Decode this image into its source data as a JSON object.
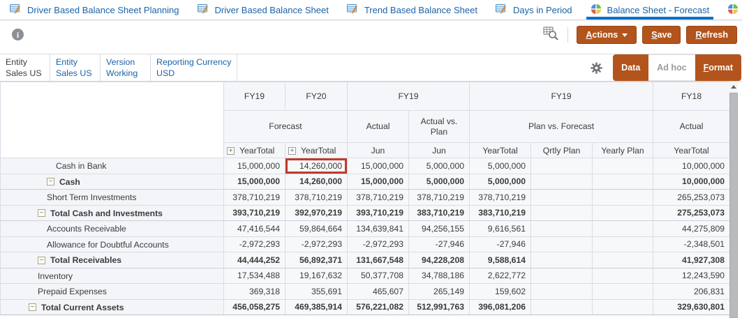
{
  "tabs": {
    "items": [
      {
        "label": "Driver Based Balance Sheet Planning",
        "icon": "form-icon",
        "active": false
      },
      {
        "label": "Driver Based Balance Sheet",
        "icon": "form-icon",
        "active": false
      },
      {
        "label": "Trend Based Balance Sheet",
        "icon": "form-icon",
        "active": false
      },
      {
        "label": "Days in Period",
        "icon": "form-icon",
        "active": false
      },
      {
        "label": "Balance Sheet - Forecast",
        "icon": "dashboard-pie-icon",
        "active": true
      },
      {
        "label": "Balance Sheet - Plan",
        "icon": "dashboard-pie-icon",
        "active": false
      }
    ]
  },
  "toolbar": {
    "icons": [
      "info-icon",
      "member-search-icon"
    ],
    "buttons": [
      {
        "label": "Actions",
        "underline_first": true,
        "has_dropdown": true
      },
      {
        "label": "Save",
        "underline_first": true,
        "has_dropdown": false
      },
      {
        "label": "Refresh",
        "underline_first": true,
        "has_dropdown": false
      }
    ]
  },
  "pov": {
    "items": [
      {
        "dimension": "Entity",
        "member": "Sales US",
        "link": false
      },
      {
        "dimension": "Entity",
        "member": "Sales US",
        "link": true
      },
      {
        "dimension": "Version",
        "member": "Working",
        "link": true
      },
      {
        "dimension": "Reporting Currency",
        "member": "USD",
        "link": true
      }
    ],
    "gear_icon": "gear-icon",
    "modes": [
      {
        "label": "Data",
        "style": "brown",
        "underline_first": false
      },
      {
        "label": "Ad hoc",
        "style": "plain",
        "underline_first": false
      },
      {
        "label": "Format",
        "style": "brown",
        "underline_first": true
      }
    ]
  },
  "grid": {
    "header": {
      "years": [
        {
          "label": "FY19",
          "span": 1
        },
        {
          "label": "FY20",
          "span": 1
        },
        {
          "label": "FY19",
          "span": 2
        },
        {
          "label": "FY19",
          "span": 3
        },
        {
          "label": "FY18",
          "span": 1
        }
      ],
      "scenarios": [
        {
          "label": "Forecast",
          "span": 2
        },
        {
          "label": "Actual",
          "span": 1
        },
        {
          "label": "Actual vs. Plan",
          "span": 1
        },
        {
          "label": "Plan vs. Forecast",
          "span": 3
        },
        {
          "label": "Actual",
          "span": 1
        }
      ],
      "periods": [
        {
          "label": "YearTotal",
          "expand": true
        },
        {
          "label": "YearTotal",
          "expand": true
        },
        {
          "label": "Jun",
          "expand": false
        },
        {
          "label": "Jun",
          "expand": false
        },
        {
          "label": "YearTotal",
          "expand": false
        },
        {
          "label": "Qrtly Plan",
          "expand": false
        },
        {
          "label": "Yearly Plan",
          "expand": false
        },
        {
          "label": "YearTotal",
          "expand": false
        }
      ]
    },
    "rows": [
      {
        "label": "Cash in Bank",
        "level": 3,
        "bold": false,
        "collapse": false,
        "values": [
          "15,000,000",
          "14,260,000",
          "15,000,000",
          "5,000,000",
          "5,000,000",
          "",
          "",
          "10,000,000"
        ],
        "highlight_col": 1
      },
      {
        "label": "Cash",
        "level": 2,
        "bold": true,
        "collapse": true,
        "values": [
          "15,000,000",
          "14,260,000",
          "15,000,000",
          "5,000,000",
          "5,000,000",
          "",
          "",
          "10,000,000"
        ],
        "highlight_col": -1
      },
      {
        "label": "Short Term Investments",
        "level": 2,
        "bold": false,
        "collapse": false,
        "values": [
          "378,710,219",
          "378,710,219",
          "378,710,219",
          "378,710,219",
          "378,710,219",
          "",
          "",
          "265,253,073"
        ],
        "highlight_col": -1
      },
      {
        "label": "Total Cash and Investments",
        "level": 1,
        "bold": true,
        "collapse": true,
        "values": [
          "393,710,219",
          "392,970,219",
          "393,710,219",
          "383,710,219",
          "383,710,219",
          "",
          "",
          "275,253,073"
        ],
        "highlight_col": -1
      },
      {
        "label": "Accounts Receivable",
        "level": 2,
        "bold": false,
        "collapse": false,
        "values": [
          "47,416,544",
          "59,864,664",
          "134,639,841",
          "94,256,155",
          "9,616,561",
          "",
          "",
          "44,275,809"
        ],
        "highlight_col": -1
      },
      {
        "label": "Allowance for Doubtful Accounts",
        "level": 2,
        "bold": false,
        "collapse": false,
        "values": [
          "-2,972,293",
          "-2,972,293",
          "-2,972,293",
          "-27,946",
          "-27,946",
          "",
          "",
          "-2,348,501"
        ],
        "highlight_col": -1
      },
      {
        "label": "Total Receivables",
        "level": 1,
        "bold": true,
        "collapse": true,
        "values": [
          "44,444,252",
          "56,892,371",
          "131,667,548",
          "94,228,208",
          "9,588,614",
          "",
          "",
          "41,927,308"
        ],
        "highlight_col": -1
      },
      {
        "label": "Inventory",
        "level": 1,
        "bold": false,
        "collapse": false,
        "values": [
          "17,534,488",
          "19,167,632",
          "50,377,708",
          "34,788,186",
          "2,622,772",
          "",
          "",
          "12,243,590"
        ],
        "highlight_col": -1
      },
      {
        "label": "Prepaid Expenses",
        "level": 1,
        "bold": false,
        "collapse": false,
        "values": [
          "369,318",
          "355,691",
          "465,607",
          "265,149",
          "159,602",
          "",
          "",
          "206,831"
        ],
        "highlight_col": -1
      },
      {
        "label": "Total Current Assets",
        "level": 0,
        "bold": true,
        "collapse": true,
        "values": [
          "456,058,275",
          "469,385,914",
          "576,221,082",
          "512,991,763",
          "396,081,206",
          "",
          "",
          "329,630,801"
        ],
        "highlight_col": -1
      }
    ],
    "expand_glyph": "+",
    "collapse_glyph": "−"
  },
  "colors": {
    "accent_brown": "#b2541c",
    "tab_blue": "#1b63a8",
    "active_tab_underline": "#0a70c7",
    "highlight_red": "#c13a2a",
    "link_blue": "#1b63a8"
  }
}
